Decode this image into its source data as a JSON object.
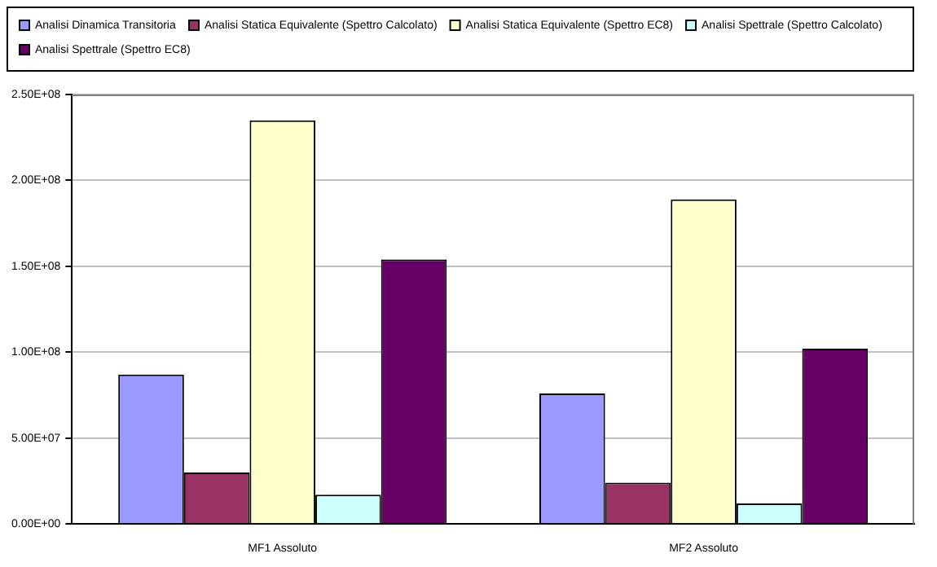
{
  "chart_data": {
    "type": "bar",
    "categories": [
      "MF1 Assoluto",
      "MF2 Assoluto"
    ],
    "series": [
      {
        "name": "Analisi Dinamica Transitoria",
        "color": "#9999ff",
        "values": [
          87000000,
          76000000
        ]
      },
      {
        "name": "Analisi Statica Equivalente (Spettro Calcolato)",
        "color": "#993366",
        "values": [
          30000000,
          24000000
        ]
      },
      {
        "name": "Analisi Statica Equivalente (Spettro EC8)",
        "color": "#ffffcc",
        "values": [
          235000000,
          189000000
        ]
      },
      {
        "name": "Analisi Spettrale (Spettro Calcolato)",
        "color": "#ccffff",
        "values": [
          17000000,
          12000000
        ]
      },
      {
        "name": "Analisi Spettrale (Spettro EC8)",
        "color": "#660066",
        "values": [
          154000000,
          102000000
        ]
      }
    ],
    "ylim": [
      0,
      250000000
    ],
    "yticks": [
      {
        "value": 0,
        "label": "0.00E+00"
      },
      {
        "value": 50000000,
        "label": "5.00E+07"
      },
      {
        "value": 100000000,
        "label": "1.00E+08"
      },
      {
        "value": 150000000,
        "label": "1.50E+08"
      },
      {
        "value": 200000000,
        "label": "2.00E+08"
      },
      {
        "value": 250000000,
        "label": "2.50E+08"
      }
    ],
    "grid": "y",
    "legend": "top"
  }
}
